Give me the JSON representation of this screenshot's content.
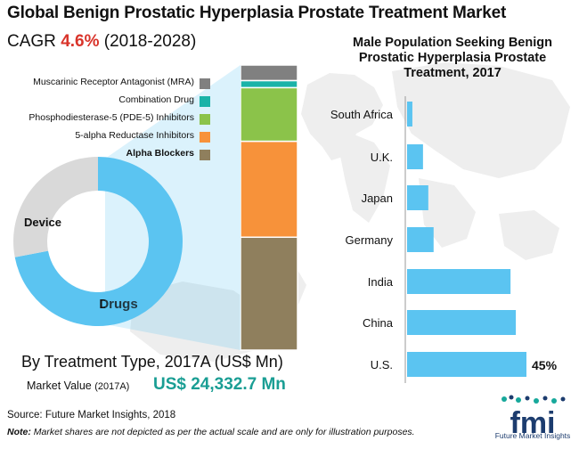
{
  "header": {
    "title": "Global Benign Prostatic Hyperplasia Prostate Treatment Market",
    "cagr_label": "CAGR",
    "cagr_value": "4.6%",
    "cagr_period": "(2018-2028)"
  },
  "colors": {
    "drugs": "#5bc4f1",
    "device": "#d9d9d9",
    "mra": "#808080",
    "combination": "#1ab3a8",
    "pde5": "#8bc34a",
    "alpha5": "#f7923a",
    "alpha_blockers": "#8f7f5d",
    "bars": "#5bc4f1",
    "logo_navy": "#1c3c6e",
    "logo_teal": "#17a89b",
    "cagr_red": "#d9342b",
    "value_teal": "#1a9e94"
  },
  "chart_data": [
    {
      "type": "pie",
      "title": "",
      "labels": [
        "Drugs",
        "Device"
      ],
      "values": [
        72,
        28
      ],
      "donut": true
    },
    {
      "type": "bar",
      "orientation": "vertical-stacked",
      "title": "",
      "legend_placement": "left",
      "series": [
        {
          "name": "Alpha Blockers",
          "values": [
            40
          ],
          "legend_bold": true
        },
        {
          "name": "5-alpha Reductase Inhibitors",
          "values": [
            34
          ]
        },
        {
          "name": "Phosphodiesterase-5 (PDE-5) Inhibitors",
          "values": [
            19
          ]
        },
        {
          "name": "Combination Drug",
          "values": [
            2.5
          ]
        },
        {
          "name": "Muscarinic Receptor Antagonist (MRA)",
          "values": [
            5.5
          ]
        }
      ]
    },
    {
      "type": "bar",
      "orientation": "horizontal",
      "title": "Male Population Seeking Benign Prostatic  Hyperplasia Prostate  Treatment, 2017",
      "categories": [
        "South Africa",
        "U.K.",
        "Japan",
        "Germany",
        "India",
        "China",
        "U.S."
      ],
      "values": [
        2,
        6,
        8,
        10,
        39,
        41,
        45
      ],
      "data_labels": [
        "",
        "",
        "",
        "",
        "",
        "",
        "45%"
      ],
      "xlim": [
        0,
        45
      ],
      "grid": false
    }
  ],
  "footer": {
    "by_type": "By Treatment Type, 2017A (US$ Mn)",
    "market_value_label": "Market Value",
    "market_value_period": "(2017A)",
    "market_value": "US$ 24,332.7 Mn",
    "source": "Source: Future Market Insights, 2018",
    "note_label": "Note:",
    "note_text": "Market shares are not depicted as per the actual scale and are only for illustration purposes."
  },
  "logo": {
    "text": "fmi",
    "caption": "Future Market Insights"
  }
}
